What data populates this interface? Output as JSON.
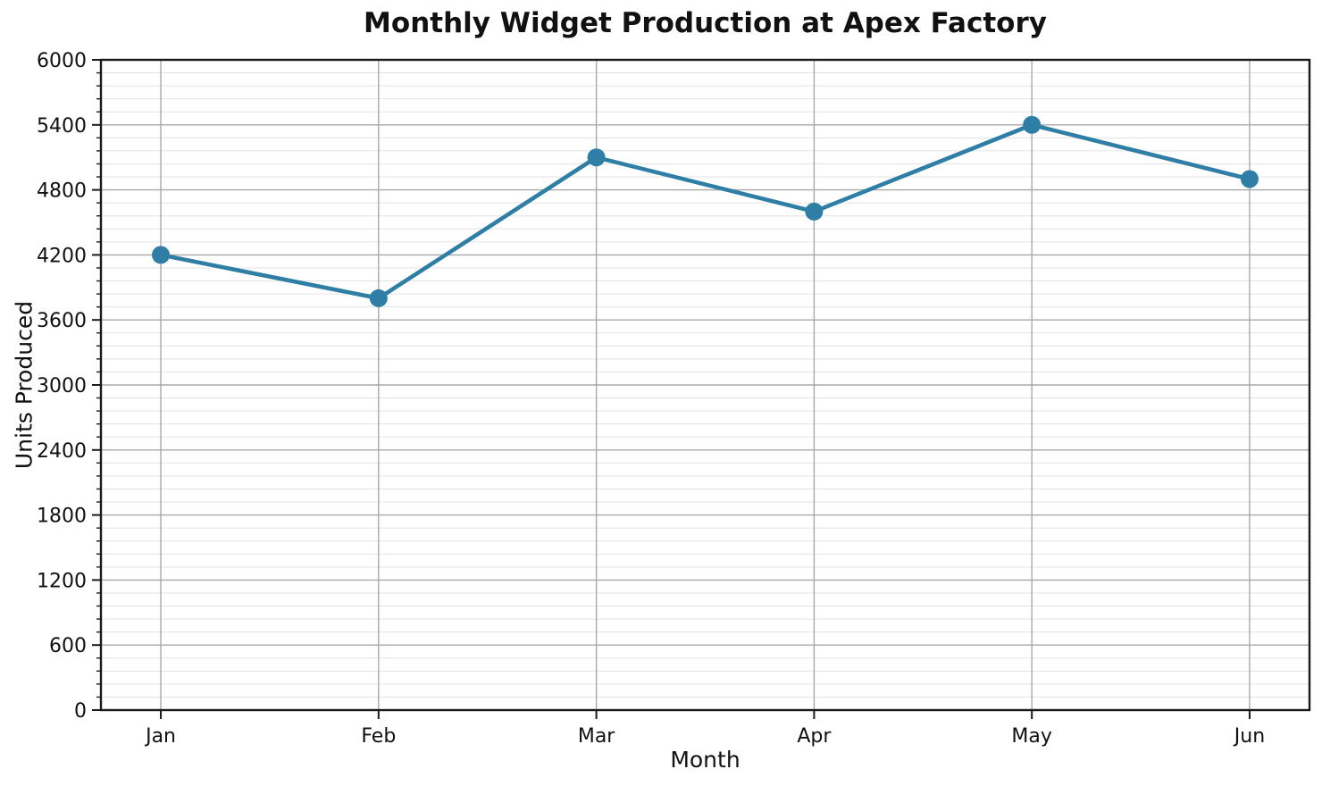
{
  "chart_data": {
    "type": "line",
    "title": "Monthly Widget Production at Apex Factory",
    "xlabel": "Month",
    "ylabel": "Units Produced",
    "categories": [
      "Jan",
      "Feb",
      "Mar",
      "Apr",
      "May",
      "Jun"
    ],
    "series": [
      {
        "name": "Units Produced",
        "values": [
          4200,
          3800,
          5100,
          4600,
          5400,
          4900
        ]
      }
    ],
    "ylim": [
      0,
      6000
    ],
    "ytick_step": 600,
    "yminor_step": 120,
    "ytick_labels": [
      "0",
      "600",
      "1200",
      "1800",
      "2400",
      "3000",
      "3600",
      "4200",
      "4800",
      "5400",
      "6000"
    ],
    "grid": "major-and-minor-horizontal, major-vertical",
    "legend": "none",
    "colors": {
      "line": "#2e7ea6",
      "marker": "#2e7ea6",
      "grid_major": "#a8a8a8",
      "grid_minor": "#e3e3e3",
      "spine": "#1a1a1a",
      "text": "#111111",
      "background": "#ffffff"
    }
  }
}
